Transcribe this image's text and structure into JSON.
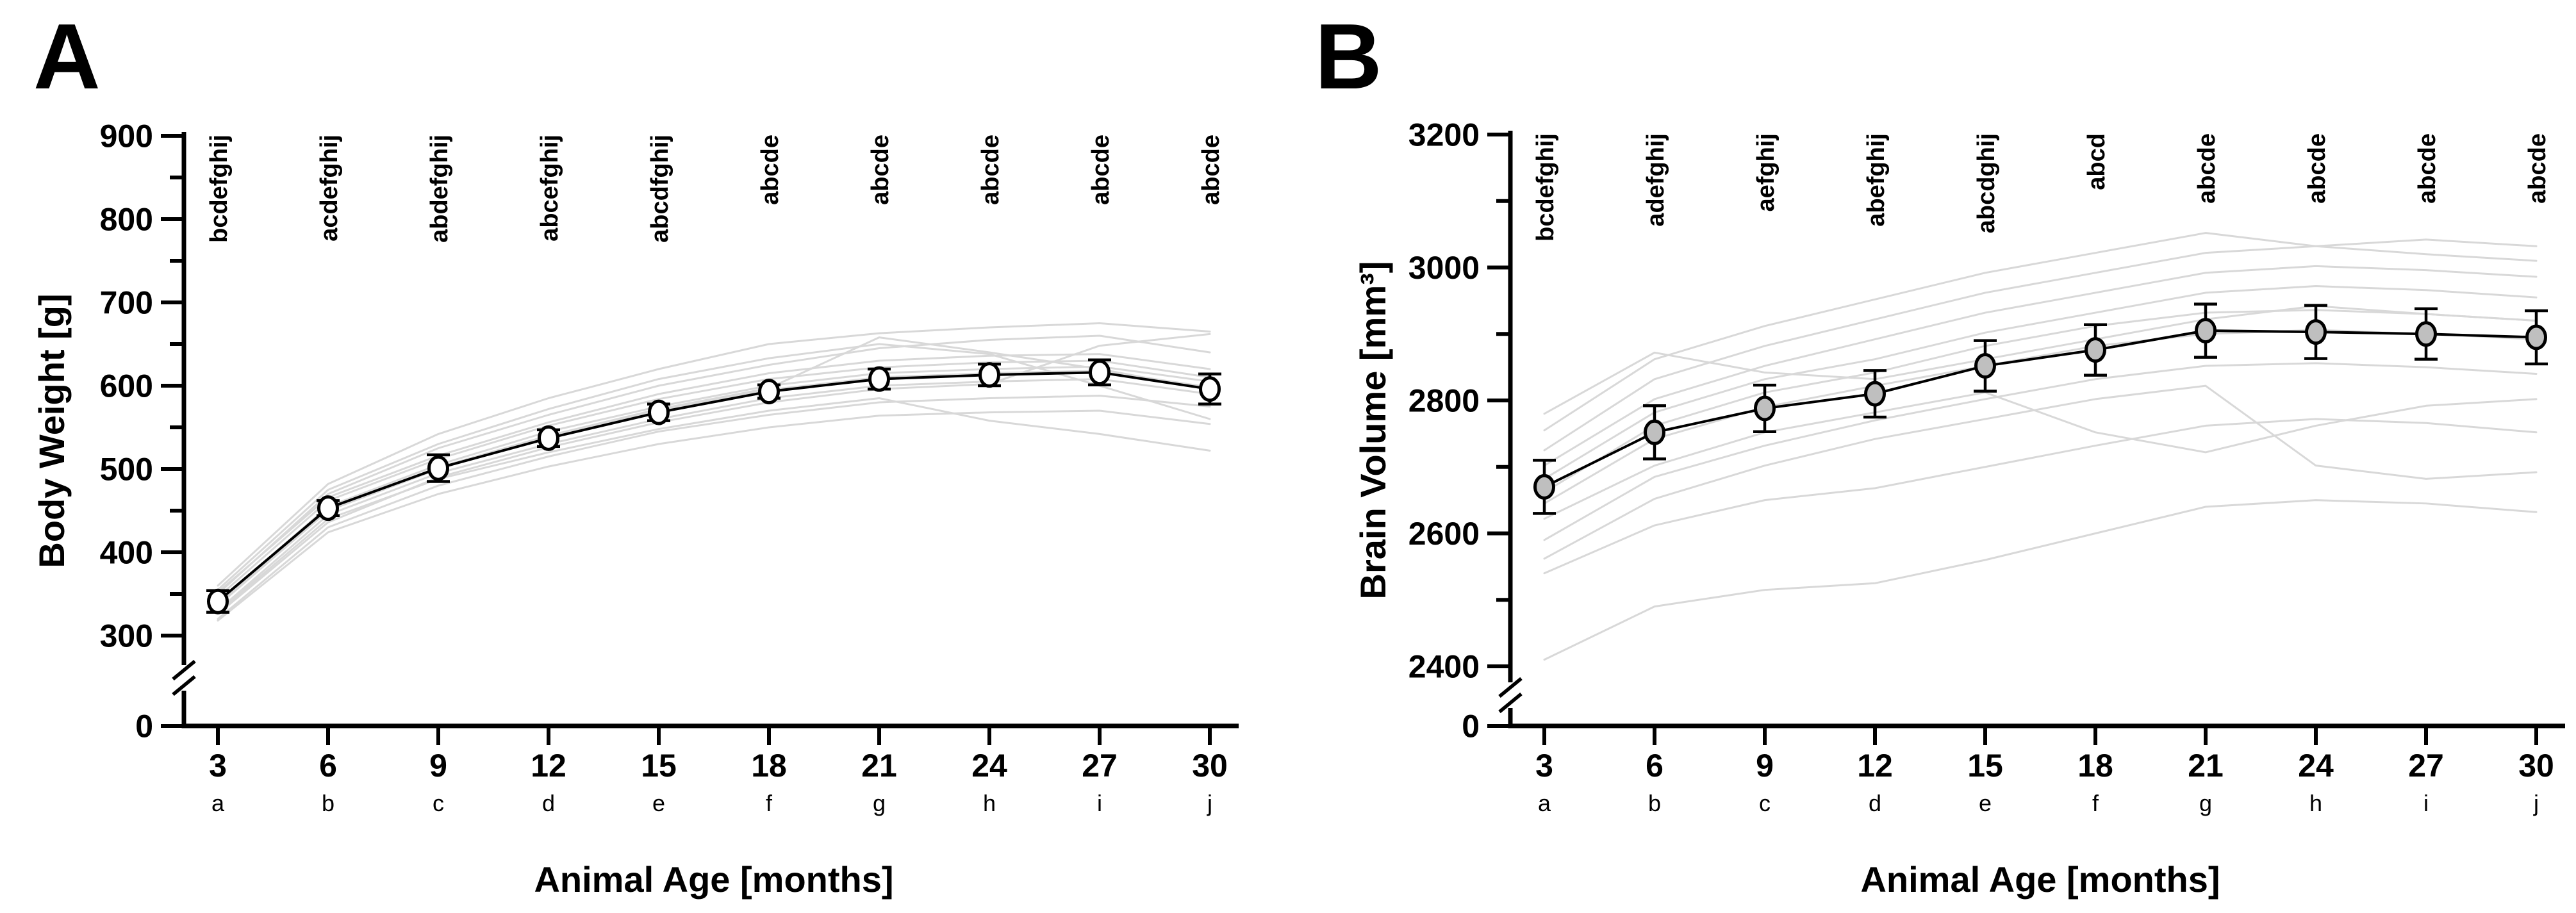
{
  "figure": {
    "background": "#ffffff",
    "panel_labels": [
      "A",
      "B"
    ]
  },
  "chart_data": [
    {
      "type": "line",
      "panel_label": "A",
      "title": "",
      "xlabel": "Animal Age [months]",
      "ylabel": "Body Weight [g]",
      "x": [
        3,
        6,
        9,
        12,
        15,
        18,
        21,
        24,
        27,
        30
      ],
      "x_sublabels": [
        "a",
        "b",
        "c",
        "d",
        "e",
        "f",
        "g",
        "h",
        "i",
        "j"
      ],
      "ylim": [
        300,
        900
      ],
      "y_ticks_major": [
        900,
        800,
        700,
        600,
        500,
        400,
        300
      ],
      "y_ticks_minor": [
        850,
        750,
        650,
        550,
        450,
        350
      ],
      "y_axis_break": true,
      "y_zero_label": "0",
      "significance_letters": [
        "bcdefghij",
        "acdefghij",
        "abdefghij",
        "abcefghij",
        "abcdfghij",
        "abcde",
        "abcde",
        "abcde",
        "abcde",
        "abcde"
      ],
      "legend_position": "none",
      "grid": false,
      "mean_series": {
        "name": "group mean",
        "values": [
          341,
          453,
          501,
          537,
          568,
          593,
          608,
          613,
          616,
          596
        ],
        "errors": [
          13,
          9,
          16,
          10,
          10,
          8,
          12,
          13,
          15,
          18
        ],
        "marker_fill": "#ffffff",
        "line_color": "#000000"
      },
      "individual_series_color": "#d8d8d8",
      "individual_series": [
        [
          320,
          430,
          480,
          515,
          545,
          565,
          580,
          585,
          588,
          575
        ],
        [
          330,
          445,
          495,
          530,
          560,
          585,
          600,
          605,
          608,
          590
        ],
        [
          340,
          455,
          505,
          545,
          575,
          600,
          615,
          620,
          623,
          605
        ],
        [
          350,
          470,
          525,
          565,
          600,
          625,
          645,
          655,
          660,
          640
        ],
        [
          360,
          482,
          542,
          585,
          620,
          650,
          663,
          670,
          675,
          665
        ],
        [
          326,
          436,
          490,
          526,
          556,
          580,
          596,
          602,
          648,
          662
        ],
        [
          336,
          450,
          500,
          540,
          570,
          595,
          610,
          615,
          618,
          598
        ],
        [
          346,
          462,
          512,
          552,
          584,
          608,
          622,
          628,
          630,
          610
        ],
        [
          355,
          475,
          530,
          572,
          608,
          633,
          650,
          638,
          600,
          560
        ],
        [
          318,
          424,
          470,
          503,
          530,
          550,
          564,
          568,
          570,
          554
        ],
        [
          338,
          452,
          502,
          540,
          572,
          597,
          658,
          640,
          620,
          595
        ],
        [
          328,
          440,
          488,
          520,
          548,
          570,
          585,
          558,
          542,
          522
        ],
        [
          352,
          466,
          516,
          556,
          590,
          615,
          630,
          636,
          638,
          620
        ]
      ]
    },
    {
      "type": "line",
      "panel_label": "B",
      "title": "",
      "xlabel": "Animal Age [months]",
      "ylabel": "Brain Volume [mm³]",
      "x": [
        3,
        6,
        9,
        12,
        15,
        18,
        21,
        24,
        27,
        30
      ],
      "x_sublabels": [
        "a",
        "b",
        "c",
        "d",
        "e",
        "f",
        "g",
        "h",
        "i",
        "j"
      ],
      "ylim": [
        2400,
        3200
      ],
      "y_ticks_major": [
        3200,
        3000,
        2800,
        2600,
        2400
      ],
      "y_ticks_minor": [
        3100,
        2900,
        2700,
        2500
      ],
      "y_axis_break": true,
      "y_zero_label": "0",
      "significance_letters": [
        "bcdefghij",
        "adefghij",
        "aefghij",
        "abefghij",
        "abcdghij",
        "abcd",
        "abcde",
        "abcde",
        "abcde",
        "abcde"
      ],
      "legend_position": "none",
      "grid": false,
      "mean_series": {
        "name": "group mean",
        "values": [
          2670,
          2752,
          2788,
          2810,
          2852,
          2876,
          2905,
          2903,
          2900,
          2895
        ],
        "errors": [
          40,
          40,
          35,
          35,
          38,
          38,
          40,
          40,
          38,
          40
        ],
        "marker_fill": "#bfbfbf",
        "line_color": "#000000"
      },
      "individual_series_color": "#d8d8d8",
      "individual_series": [
        [
          2410,
          2490,
          2515,
          2525,
          2560,
          2600,
          2640,
          2650,
          2645,
          2632
        ],
        [
          2540,
          2612,
          2650,
          2668,
          2700,
          2732,
          2762,
          2772,
          2766,
          2752
        ],
        [
          2590,
          2685,
          2732,
          2770,
          2802,
          2832,
          2852,
          2856,
          2850,
          2840
        ],
        [
          2645,
          2742,
          2790,
          2822,
          2852,
          2882,
          2900,
          2906,
          2900,
          2892
        ],
        [
          2662,
          2762,
          2812,
          2842,
          2882,
          2912,
          2932,
          2936,
          2930,
          2920
        ],
        [
          2682,
          2782,
          2832,
          2862,
          2902,
          2932,
          2962,
          2972,
          2966,
          2955
        ],
        [
          2702,
          2802,
          2852,
          2892,
          2932,
          2962,
          2992,
          3002,
          2996,
          2986
        ],
        [
          2725,
          2832,
          2882,
          2922,
          2962,
          2992,
          3022,
          3032,
          3042,
          3032
        ],
        [
          2755,
          2862,
          2912,
          2952,
          2992,
          3022,
          3052,
          3032,
          3020,
          3010
        ],
        [
          2780,
          2872,
          2842,
          2832,
          2862,
          2892,
          2922,
          2942,
          2930,
          2920
        ],
        [
          2622,
          2702,
          2752,
          2782,
          2812,
          2752,
          2722,
          2762,
          2792,
          2802
        ],
        [
          2562,
          2652,
          2702,
          2742,
          2772,
          2802,
          2822,
          2702,
          2682,
          2692
        ]
      ]
    }
  ]
}
